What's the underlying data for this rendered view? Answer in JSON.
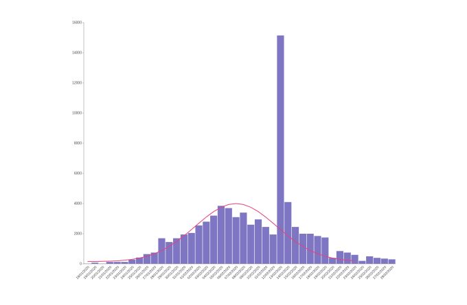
{
  "chart_data": {
    "type": "bar",
    "categories": [
      "18/01/2020",
      "19/01/2020",
      "20/01/2020",
      "21/01/2020",
      "22/01/2020",
      "23/01/2020",
      "24/01/2020",
      "25/01/2020",
      "26/01/2020",
      "27/01/2020",
      "28/01/2020",
      "29/01/2020",
      "30/01/2020",
      "31/01/2020",
      "01/02/2020",
      "02/02/2020",
      "03/02/2020",
      "04/02/2020",
      "05/02/2020",
      "06/02/2020",
      "07/02/2020",
      "08/02/2020",
      "09/02/2020",
      "10/02/2020",
      "11/02/2020",
      "12/02/2020",
      "13/02/2020",
      "14/02/2020",
      "15/02/2020",
      "16/02/2020",
      "17/02/2020",
      "18/02/2020",
      "19/02/2020",
      "20/02/2020",
      "21/02/2020",
      "22/02/2020",
      "23/02/2020",
      "24/02/2020",
      "25/02/2020",
      "26/02/2020",
      "27/02/2020",
      "28/02/2020"
    ],
    "values": [
      20,
      80,
      20,
      130,
      130,
      130,
      280,
      420,
      650,
      750,
      1700,
      1450,
      1700,
      1950,
      2050,
      2550,
      2800,
      3200,
      3850,
      3700,
      3100,
      3400,
      2600,
      2950,
      2450,
      1950,
      15150,
      4100,
      2450,
      2000,
      2000,
      1850,
      1750,
      400,
      850,
      750,
      600,
      200,
      500,
      400,
      350,
      300
    ],
    "color": "#7e76c2",
    "fit": {
      "type": "line",
      "color": "#e8407c",
      "values": [
        155,
        160,
        168,
        182,
        206,
        243,
        300,
        385,
        506,
        671,
        886,
        1159,
        1486,
        1863,
        2272,
        2696,
        3106,
        3467,
        3754,
        3938,
        4000,
        3938,
        3754,
        3467,
        3106,
        2696,
        2272,
        1863,
        1486,
        1159,
        886,
        671,
        506,
        385,
        300,
        243,
        206,
        null,
        null,
        null,
        null,
        null
      ]
    },
    "ylim": [
      0,
      16000
    ],
    "yticks": [
      0,
      2000,
      4000,
      6000,
      8000,
      10000,
      12000,
      14000,
      16000
    ]
  }
}
